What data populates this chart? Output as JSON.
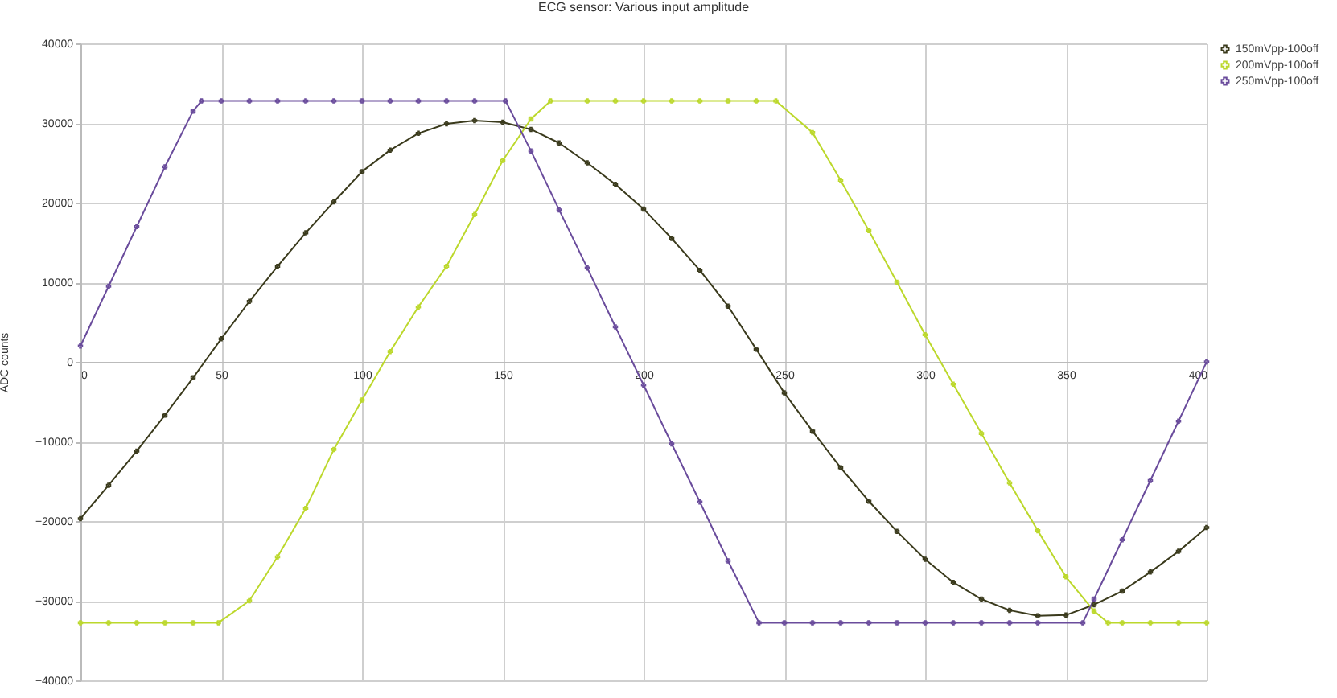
{
  "chart_data": {
    "type": "line",
    "title": "ECG sensor: Various input amplitude",
    "ylabel": "ADC counts",
    "xlim": [
      0,
      400
    ],
    "xticks": [
      0,
      50,
      100,
      150,
      200,
      250,
      300,
      350,
      400
    ],
    "ylim": [
      -40000,
      40000
    ],
    "yticks": [
      -40000,
      -30000,
      -20000,
      -10000,
      0,
      10000,
      20000,
      30000,
      40000
    ],
    "grid": true,
    "legend": "right",
    "marker": "cross",
    "series": [
      {
        "name": "150mVpp-100off",
        "color": "#3a3a1c",
        "x": [
          0,
          10,
          20,
          30,
          40,
          50,
          60,
          70,
          80,
          90,
          100,
          110,
          120,
          130,
          140,
          150,
          160,
          170,
          180,
          190,
          200,
          210,
          220,
          230,
          240,
          250,
          260,
          270,
          280,
          290,
          300,
          310,
          320,
          330,
          340,
          350,
          360,
          370,
          380,
          390,
          400
        ],
        "values": [
          -19700,
          -15500,
          -11200,
          -6700,
          -2000,
          2900,
          7600,
          12000,
          16200,
          20100,
          23900,
          26600,
          28700,
          29900,
          30300,
          30100,
          29200,
          27500,
          25000,
          22300,
          19200,
          15500,
          11500,
          7000,
          1600,
          -3900,
          -8700,
          -13300,
          -17500,
          -21300,
          -24800,
          -27700,
          -29800,
          -31200,
          -31900,
          -31800,
          -30500,
          -28800,
          -26400,
          -23800,
          -20800
        ]
      },
      {
        "name": "200mVpp-100off",
        "color": "#bcd82c",
        "x": [
          0,
          10,
          20,
          30,
          40,
          49,
          60,
          70,
          80,
          90,
          100,
          110,
          120,
          130,
          140,
          150,
          160,
          167,
          180,
          190,
          200,
          210,
          220,
          230,
          240,
          247,
          260,
          270,
          280,
          290,
          300,
          310,
          320,
          330,
          340,
          350,
          360,
          365,
          370,
          380,
          390,
          400
        ],
        "values": [
          -32768,
          -32768,
          -32768,
          -32768,
          -32768,
          -32768,
          -30000,
          -24500,
          -18400,
          -11000,
          -4800,
          1300,
          6900,
          12000,
          18500,
          25300,
          30500,
          32768,
          32768,
          32768,
          32768,
          32768,
          32768,
          32768,
          32768,
          32768,
          28800,
          22800,
          16500,
          10000,
          3400,
          -2800,
          -9000,
          -15200,
          -21200,
          -27000,
          -31300,
          -32768,
          -32768,
          -32768,
          -32768,
          -32768
        ]
      },
      {
        "name": "250mVpp-100off",
        "color": "#6a4c9c",
        "x": [
          0,
          10,
          20,
          30,
          40,
          43,
          50,
          60,
          70,
          80,
          90,
          100,
          110,
          120,
          130,
          140,
          151,
          160,
          170,
          180,
          190,
          200,
          210,
          220,
          230,
          241,
          250,
          260,
          270,
          280,
          290,
          300,
          310,
          320,
          330,
          340,
          356,
          360,
          370,
          380,
          390,
          400
        ],
        "values": [
          2000,
          9500,
          17000,
          24500,
          31500,
          32768,
          32768,
          32768,
          32768,
          32768,
          32768,
          32768,
          32768,
          32768,
          32768,
          32768,
          32768,
          26500,
          19100,
          11800,
          4400,
          -2900,
          -10300,
          -17600,
          -25000,
          -32768,
          -32768,
          -32768,
          -32768,
          -32768,
          -32768,
          -32768,
          -32768,
          -32768,
          -32768,
          -32768,
          -32768,
          -29800,
          -22350,
          -14900,
          -7450,
          0
        ]
      }
    ]
  }
}
